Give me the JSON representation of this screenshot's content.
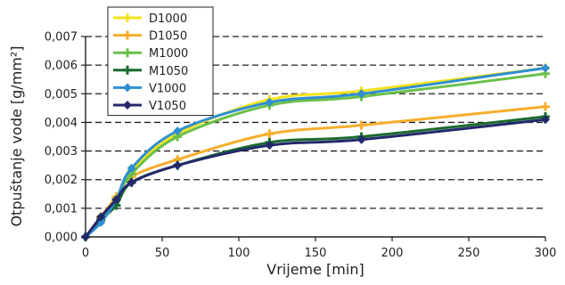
{
  "chart_data": {
    "type": "line",
    "xlabel": "Vrijeme [min]",
    "ylabel": "Otpuštanje vode [g/mm²]",
    "xlim": [
      0,
      300
    ],
    "ylim": [
      0,
      0.007
    ],
    "x_ticks": [
      0,
      50,
      100,
      150,
      200,
      250,
      300
    ],
    "y_ticks": [
      0,
      0.001,
      0.002,
      0.003,
      0.004,
      0.005,
      0.006,
      0.007
    ],
    "x_tick_labels": [
      "0",
      "50",
      "100",
      "150",
      "200",
      "250",
      "300"
    ],
    "y_tick_labels": [
      "0,000",
      "0,001",
      "0,002",
      "0,003",
      "0,004",
      "0,005",
      "0,006",
      "0,007"
    ],
    "grid": "horizontal dashed",
    "legend_position": "top-left",
    "x": [
      0,
      10,
      20,
      30,
      60,
      120,
      180,
      300
    ],
    "series": [
      {
        "name": "D1000",
        "color": "#f5e21b",
        "marker": "plus",
        "values": [
          0,
          0.0006,
          0.0013,
          0.0023,
          0.0036,
          0.0048,
          0.0051,
          0.0059
        ]
      },
      {
        "name": "D1050",
        "color": "#f6ae2d",
        "marker": "plus",
        "values": [
          0,
          0.0007,
          0.0014,
          0.0021,
          0.0027,
          0.0036,
          0.0039,
          0.00455
        ]
      },
      {
        "name": "M1000",
        "color": "#6cc04a",
        "marker": "plus",
        "values": [
          0,
          0.0006,
          0.0013,
          0.0022,
          0.0035,
          0.0046,
          0.0049,
          0.0057
        ]
      },
      {
        "name": "M1050",
        "color": "#1b6b2f",
        "marker": "plus",
        "values": [
          0,
          0.0006,
          0.0011,
          0.0019,
          0.0025,
          0.0033,
          0.0035,
          0.0042
        ]
      },
      {
        "name": "V1000",
        "color": "#2f8fd0",
        "marker": "diamond",
        "values": [
          0,
          0.0005,
          0.0013,
          0.0024,
          0.0037,
          0.0047,
          0.005,
          0.0059
        ]
      },
      {
        "name": "V1050",
        "color": "#23286b",
        "marker": "diamond",
        "values": [
          0,
          0.0007,
          0.0013,
          0.0019,
          0.0025,
          0.0032,
          0.0034,
          0.0041
        ]
      }
    ]
  }
}
